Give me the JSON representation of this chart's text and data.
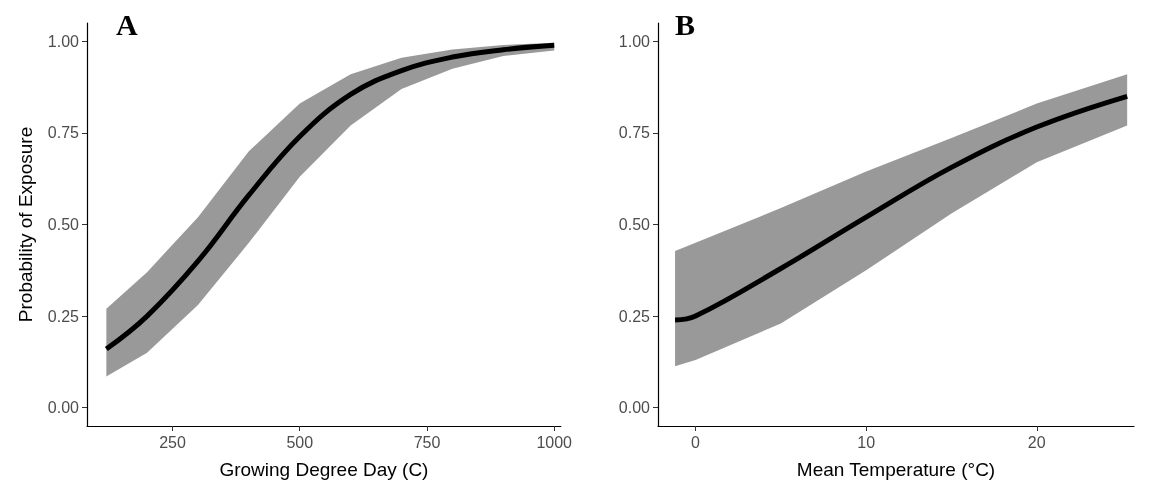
{
  "chart_data": [
    {
      "type": "line",
      "title": "A",
      "xlabel": "Growing Degree Day (C)",
      "ylabel": "Probability of Exposure",
      "xlim": [
        82,
        1013
      ],
      "xticks": [
        250,
        500,
        750,
        1000
      ],
      "ylim": [
        -0.05,
        1.05
      ],
      "yticks": [
        {
          "value": 0,
          "label": "0.00"
        },
        {
          "value": 0.25,
          "label": "0.25"
        },
        {
          "value": 0.5,
          "label": "0.50"
        },
        {
          "value": 0.75,
          "label": "0.75"
        },
        {
          "value": 1,
          "label": "1.00"
        }
      ],
      "grid": false,
      "marker": "none",
      "line_style": "solid",
      "x": [
        120,
        200,
        300,
        400,
        500,
        600,
        700,
        800,
        900,
        1000
      ],
      "series": [
        {
          "color": "#000000",
          "values": [
            0.16,
            0.25,
            0.4,
            0.58,
            0.74,
            0.855,
            0.92,
            0.957,
            0.977,
            0.989
          ],
          "upper": [
            0.27,
            0.37,
            0.52,
            0.7,
            0.83,
            0.91,
            0.955,
            0.978,
            0.99,
            0.996
          ],
          "lower": [
            0.085,
            0.15,
            0.28,
            0.45,
            0.63,
            0.77,
            0.87,
            0.925,
            0.96,
            0.975
          ]
        }
      ]
    },
    {
      "type": "line",
      "title": "B",
      "xlabel": "Mean Temperature (°C)",
      "xlim": [
        -2.2,
        25.7
      ],
      "xticks": [
        0,
        10,
        20
      ],
      "ylim": [
        -0.05,
        1.05
      ],
      "yticks": [
        {
          "value": 0,
          "label": "0.00"
        },
        {
          "value": 0.25,
          "label": "0.25"
        },
        {
          "value": 0.5,
          "label": "0.50"
        },
        {
          "value": 0.75,
          "label": "0.75"
        },
        {
          "value": 1,
          "label": "1.00"
        }
      ],
      "grid": false,
      "marker": "none",
      "line_style": "solid",
      "x": [
        -1.2,
        0,
        5,
        10,
        15,
        20,
        25.3
      ],
      "series": [
        {
          "color": "#000000",
          "values": [
            0.239,
            0.25,
            0.38,
            0.52,
            0.656,
            0.766,
            0.85
          ],
          "upper": [
            0.428,
            0.45,
            0.545,
            0.645,
            0.736,
            0.83,
            0.91
          ],
          "lower": [
            0.113,
            0.13,
            0.23,
            0.375,
            0.53,
            0.67,
            0.77
          ]
        }
      ]
    }
  ]
}
